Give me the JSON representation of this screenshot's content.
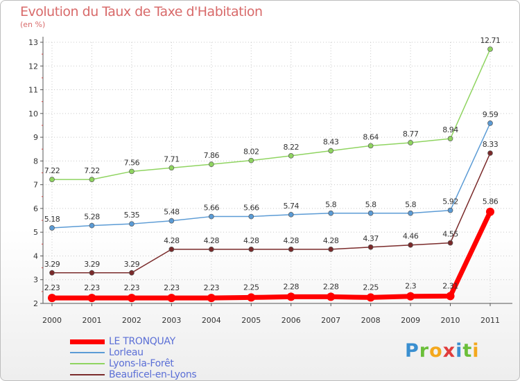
{
  "chart_data": {
    "type": "line",
    "title": "Evolution du Taux de Taxe d'Habitation",
    "subtitle": "(en %)",
    "x": [
      "2000",
      "2001",
      "2002",
      "2003",
      "2004",
      "2005",
      "2006",
      "2007",
      "2008",
      "2009",
      "2010",
      "2011"
    ],
    "ylim": [
      2,
      13
    ],
    "yticks": [
      2,
      3,
      4,
      5,
      6,
      7,
      8,
      9,
      10,
      11,
      12,
      13
    ],
    "grid": "dotted",
    "legend_position": "bottom-left",
    "series": [
      {
        "name": "LE TRONQUAY",
        "color": "#ff0000",
        "values": [
          2.23,
          2.23,
          2.23,
          2.23,
          2.23,
          2.25,
          2.28,
          2.28,
          2.25,
          2.3,
          2.31,
          5.86
        ],
        "labels": [
          "2.23",
          "2.23",
          "2.23",
          "2.23",
          "2.23",
          "2.25",
          "2.28",
          "2.28",
          "2.25",
          "2.3",
          "2.31",
          "5.86"
        ]
      },
      {
        "name": "Lorleau",
        "color": "#5b9bd5",
        "values": [
          5.18,
          5.28,
          5.35,
          5.48,
          5.66,
          5.66,
          5.74,
          5.8,
          5.8,
          5.8,
          5.92,
          9.59
        ],
        "labels": [
          "5.18",
          "5.28",
          "5.35",
          "5.48",
          "5.66",
          "5.66",
          "5.74",
          "5.8",
          "5.8",
          "5.8",
          "5.92",
          "9.59"
        ]
      },
      {
        "name": "Lyons-la-Forêt",
        "color": "#8fd460",
        "values": [
          7.22,
          7.22,
          7.56,
          7.71,
          7.86,
          8.02,
          8.22,
          8.43,
          8.64,
          8.77,
          8.94,
          12.71
        ],
        "labels": [
          "7.22",
          "7.22",
          "7.56",
          "7.71",
          "7.86",
          "8.02",
          "8.22",
          "8.43",
          "8.64",
          "8.77",
          "8.94",
          "12.71"
        ]
      },
      {
        "name": "Beauficel-en-Lyons",
        "color": "#7a2a2a",
        "values": [
          3.29,
          3.29,
          3.29,
          4.28,
          4.28,
          4.28,
          4.28,
          4.28,
          4.37,
          4.46,
          4.55,
          8.33
        ],
        "labels": [
          "3.29",
          "3.29",
          "3.29",
          "4.28",
          "4.28",
          "4.28",
          "4.28",
          "4.28",
          "4.37",
          "4.46",
          "4.55",
          "8.33"
        ]
      }
    ]
  },
  "brand": {
    "letters": [
      "P",
      "r",
      "o",
      "x",
      "i",
      "t",
      "i"
    ],
    "colors": [
      "#3a8fd0",
      "#6bbf3a",
      "#f4a81d",
      "#e03c3c",
      "#3a8fd0",
      "#6bbf3a",
      "#f4a81d"
    ]
  }
}
